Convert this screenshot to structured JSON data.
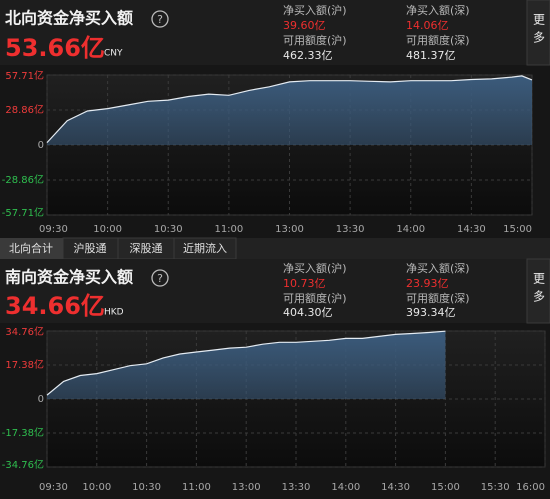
{
  "panels": [
    {
      "title": "北向资金净买入额",
      "help_icon": "?",
      "net_total": "53.66亿",
      "currency": "CNY",
      "more": "更多",
      "stats": [
        {
          "label": "净买入额(沪)",
          "value": "39.60亿"
        },
        {
          "label": "净买入额(深)",
          "value": "14.06亿"
        },
        {
          "label": "可用额度(沪)",
          "value": "462.33亿"
        },
        {
          "label": "可用额度(深)",
          "value": "481.37亿"
        }
      ]
    },
    {
      "title": "南向资金净买入额",
      "help_icon": "?",
      "net_total": "34.66亿",
      "currency": "HKD",
      "more": "更多",
      "stats": [
        {
          "label": "净买入额(沪)",
          "value": "10.73亿"
        },
        {
          "label": "净买入额(深)",
          "value": "23.93亿"
        },
        {
          "label": "可用额度(沪)",
          "value": "404.30亿"
        },
        {
          "label": "可用额度(深)",
          "value": "393.34亿"
        }
      ]
    }
  ],
  "tabs": [
    "北向合计",
    "沪股通",
    "深股通",
    "近期流入"
  ],
  "chart_data": [
    {
      "type": "area",
      "color": "#e4ebf2",
      "fill_color": "#3b5b7c",
      "grid": true,
      "x": [
        "09:30",
        "09:40",
        "09:50",
        "10:00",
        "10:10",
        "10:20",
        "10:30",
        "10:40",
        "10:50",
        "11:00",
        "11:10",
        "11:20",
        "11:30",
        "13:10",
        "13:20",
        "13:30",
        "13:40",
        "13:50",
        "14:00",
        "14:10",
        "14:20",
        "14:30",
        "14:40",
        "14:50",
        "14:55",
        "15:00"
      ],
      "values": [
        2,
        20,
        28,
        30,
        33,
        36,
        37,
        40,
        42,
        41,
        45,
        48,
        52,
        53,
        53,
        53,
        52.5,
        52,
        53,
        53,
        53,
        54,
        54.5,
        56,
        57,
        53.66
      ],
      "xlim": [
        "09:30",
        "15:00"
      ],
      "xticks": [
        "09:30",
        "10:00",
        "10:30",
        "11:00",
        "13:00",
        "13:30",
        "14:00",
        "14:30",
        "15:00"
      ],
      "ylim": [
        -57.71,
        57.71
      ],
      "yticks": [
        {
          "value": 57.71,
          "label": "57.71亿"
        },
        {
          "value": 28.86,
          "label": "28.86亿"
        },
        0,
        {
          "value": -28.86,
          "label": "-28.86亿"
        },
        {
          "value": -57.71,
          "label": "-57.71亿"
        }
      ]
    },
    {
      "type": "area",
      "color": "#e4ebf2",
      "fill_color": "#3b5b7c",
      "grid": true,
      "x": [
        "09:30",
        "09:40",
        "09:50",
        "10:00",
        "10:10",
        "10:20",
        "10:30",
        "10:40",
        "10:50",
        "11:00",
        "11:10",
        "11:20",
        "11:30",
        "13:10",
        "13:20",
        "13:30",
        "13:40",
        "13:50",
        "14:00",
        "14:10",
        "14:20",
        "14:30",
        "14:40",
        "14:50",
        "15:00"
      ],
      "values": [
        2,
        9,
        12,
        13,
        15,
        17,
        18,
        21,
        23,
        24,
        25,
        26,
        26.5,
        28,
        29,
        29,
        29.5,
        30,
        31,
        31,
        32,
        33,
        33.5,
        34,
        34.66
      ],
      "xlim": [
        "09:30",
        "16:00"
      ],
      "xticks": [
        "09:30",
        "10:00",
        "10:30",
        "11:00",
        "13:00",
        "13:30",
        "14:00",
        "14:30",
        "15:00",
        "15:30",
        "16:00"
      ],
      "ylim": [
        -34.76,
        34.76
      ],
      "yticks": [
        {
          "value": 34.76,
          "label": "34.76亿"
        },
        {
          "value": 17.38,
          "label": "17.38亿"
        },
        0,
        {
          "value": -17.38,
          "label": "-17.38亿"
        },
        {
          "value": -34.76,
          "label": "-34.76亿"
        }
      ]
    }
  ]
}
